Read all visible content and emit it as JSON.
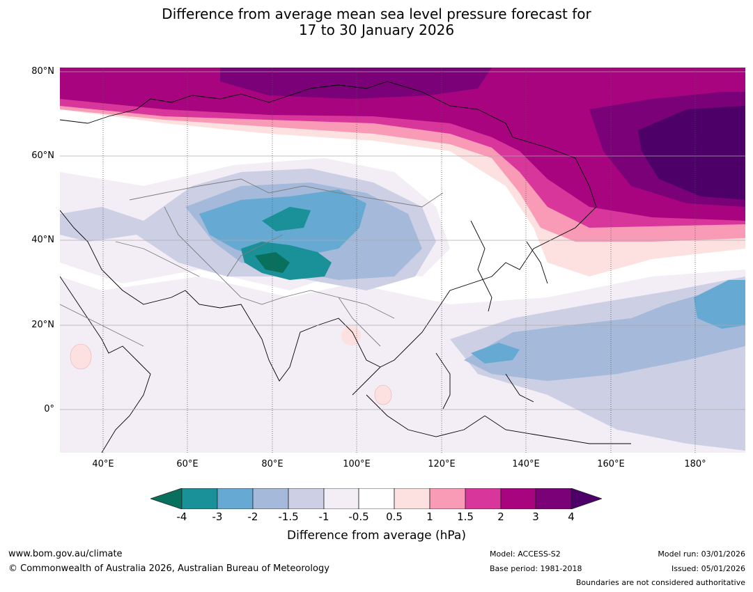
{
  "title_line1": "Difference from average mean sea level pressure forecast for",
  "title_line2": "17 to 30 January 2026",
  "map": {
    "lat_labels": [
      "80°N",
      "60°N",
      "40°N",
      "20°N",
      "0°"
    ],
    "lon_labels": [
      "40°E",
      "60°E",
      "80°E",
      "100°E",
      "120°E",
      "140°E",
      "160°E",
      "180°"
    ]
  },
  "colorbar": {
    "ticks": [
      "-4",
      "-3",
      "-2",
      "-1.5",
      "-1",
      "-0.5",
      "0.5",
      "1",
      "1.5",
      "2",
      "3",
      "4"
    ],
    "colors": [
      "#08705d",
      "#1a9098",
      "#66aad3",
      "#a5badb",
      "#cdd0e5",
      "#f3edf6",
      "#ffffff",
      "#fde0e0",
      "#f99ab6",
      "#d8369a",
      "#a8047f",
      "#7a0177",
      "#4d0067"
    ],
    "label": "Difference from average (hPa)"
  },
  "footer": {
    "url": "www.bom.gov.au/climate",
    "copyright": "© Commonwealth of Australia 2026, Australian Bureau of Meteorology",
    "model": "Model: ACCESS-S2",
    "base_period": "Base period: 1981-2018",
    "model_run": "Model run: 03/01/2026",
    "issued": "Issued: 05/01/2026",
    "disclaimer": "Boundaries are not considered authoritative"
  }
}
